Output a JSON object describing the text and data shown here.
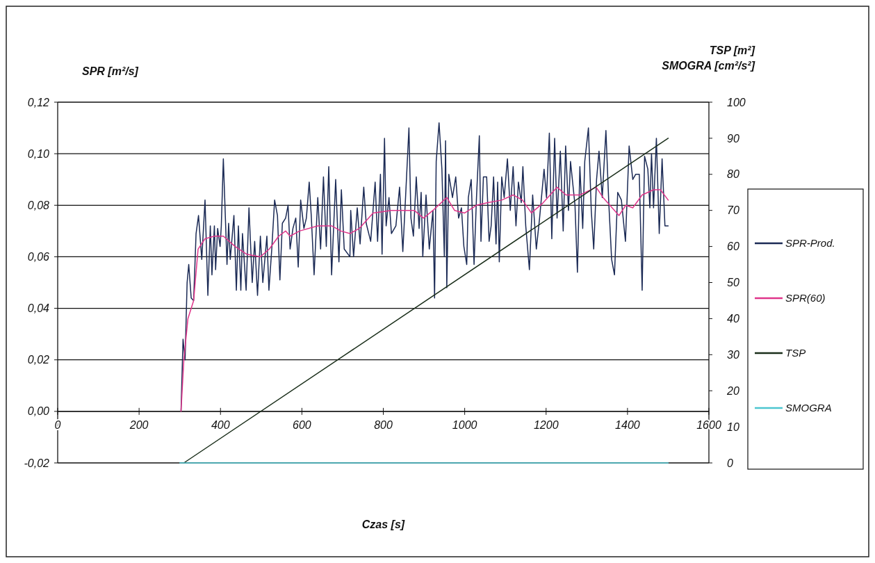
{
  "chart_data": {
    "type": "line",
    "xlabel": "Czas [s]",
    "ylabel": "SPR [m²/s]",
    "y2label": "TSP [m²]\nSMOGRA [cm²/s²]",
    "xlim": [
      0,
      1600
    ],
    "xticks": [
      0,
      200,
      400,
      600,
      800,
      1000,
      1200,
      1400,
      1600
    ],
    "ylim": [
      -0.02,
      0.12
    ],
    "yticks": [
      {
        "value": -0.02,
        "label": "-0,02"
      },
      {
        "value": 0,
        "label": "0,00"
      },
      {
        "value": 0.02,
        "label": "0,02"
      },
      {
        "value": 0.04,
        "label": "0,04"
      },
      {
        "value": 0.06,
        "label": "0,06"
      },
      {
        "value": 0.08,
        "label": "0,08"
      },
      {
        "value": 0.1,
        "label": "0,10"
      },
      {
        "value": 0.12,
        "label": "0,12"
      }
    ],
    "y2lim": [
      0,
      100
    ],
    "y2ticks": [
      0,
      10,
      20,
      30,
      40,
      50,
      60,
      70,
      80,
      90,
      100
    ],
    "grid": "y",
    "legend": "right",
    "marker": "none",
    "line_style": "solid",
    "series": [
      {
        "name": "SPR-Prod.",
        "color": "#1b2a55",
        "x": [
          303,
          308,
          313,
          318,
          322,
          328,
          334,
          340,
          346,
          354,
          362,
          369,
          375,
          379,
          385,
          388,
          393,
          399,
          402,
          407,
          416,
          420,
          424,
          433,
          439,
          444,
          450,
          454,
          463,
          470,
          478,
          484,
          491,
          498,
          504,
          514,
          519,
          526,
          533,
          540,
          546,
          552,
          560,
          566,
          571,
          578,
          585,
          591,
          597,
          605,
          611,
          618,
          623,
          630,
          639,
          646,
          653,
          660,
          666,
          673,
          683,
          691,
          697,
          704,
          718,
          720,
          727,
          736,
          743,
          752,
          758,
          769,
          780,
          786,
          793,
          797,
          803,
          807,
          814,
          820,
          831,
          840,
          848,
          855,
          863,
          868,
          874,
          881,
          888,
          893,
          897,
          905,
          913,
          922,
          926,
          930,
          937,
          944,
          950,
          953,
          956,
          961,
          970,
          975,
          978,
          985,
          992,
          998,
          1005,
          1009,
          1016,
          1023,
          1029,
          1036,
          1040,
          1046,
          1054,
          1060,
          1065,
          1071,
          1077,
          1081,
          1085,
          1091,
          1097,
          1105,
          1112,
          1119,
          1126,
          1132,
          1139,
          1143,
          1150,
          1159,
          1167,
          1176,
          1184,
          1195,
          1201,
          1208,
          1214,
          1221,
          1227,
          1235,
          1242,
          1248,
          1255,
          1260,
          1271,
          1277,
          1283,
          1290,
          1295,
          1304,
          1311,
          1317,
          1324,
          1330,
          1338,
          1347,
          1354,
          1361,
          1368,
          1376,
          1385,
          1395,
          1404,
          1413,
          1420,
          1429,
          1436,
          1442,
          1450,
          1455,
          1459,
          1464,
          1471,
          1478,
          1485,
          1492,
          1500
        ],
        "values": [
          0,
          0.028,
          0.02,
          0.05,
          0.057,
          0.044,
          0.043,
          0.069,
          0.076,
          0.059,
          0.082,
          0.045,
          0.072,
          0.053,
          0.072,
          0.055,
          0.071,
          0.064,
          0.072,
          0.098,
          0.057,
          0.073,
          0.059,
          0.076,
          0.047,
          0.072,
          0.047,
          0.069,
          0.047,
          0.079,
          0.05,
          0.066,
          0.045,
          0.068,
          0.05,
          0.068,
          0.047,
          0.063,
          0.082,
          0.076,
          0.051,
          0.073,
          0.075,
          0.08,
          0.063,
          0.071,
          0.075,
          0.056,
          0.082,
          0.071,
          0.075,
          0.089,
          0.076,
          0.053,
          0.083,
          0.063,
          0.091,
          0.064,
          0.095,
          0.053,
          0.09,
          0.058,
          0.086,
          0.063,
          0.06,
          0.078,
          0.06,
          0.079,
          0.065,
          0.087,
          0.073,
          0.066,
          0.089,
          0.066,
          0.092,
          0.061,
          0.106,
          0.072,
          0.083,
          0.069,
          0.072,
          0.087,
          0.062,
          0.084,
          0.11,
          0.075,
          0.068,
          0.091,
          0.071,
          0.085,
          0.06,
          0.084,
          0.063,
          0.078,
          0.044,
          0.097,
          0.112,
          0.094,
          0.06,
          0.105,
          0.048,
          0.092,
          0.083,
          0.088,
          0.091,
          0.075,
          0.079,
          0.064,
          0.057,
          0.083,
          0.09,
          0.057,
          0.083,
          0.107,
          0.066,
          0.091,
          0.091,
          0.066,
          0.072,
          0.091,
          0.065,
          0.089,
          0.058,
          0.091,
          0.083,
          0.098,
          0.078,
          0.095,
          0.072,
          0.089,
          0.081,
          0.095,
          0.072,
          0.055,
          0.084,
          0.063,
          0.075,
          0.094,
          0.083,
          0.108,
          0.067,
          0.106,
          0.075,
          0.101,
          0.07,
          0.103,
          0.078,
          0.097,
          0.08,
          0.054,
          0.095,
          0.071,
          0.097,
          0.11,
          0.078,
          0.063,
          0.09,
          0.101,
          0.083,
          0.109,
          0.081,
          0.059,
          0.053,
          0.085,
          0.082,
          0.066,
          0.103,
          0.09,
          0.092,
          0.092,
          0.047,
          0.099,
          0.094,
          0.079,
          0.1,
          0.079,
          0.106,
          0.069,
          0.098,
          0.072,
          0.072
        ]
      },
      {
        "name": "SPR(60)",
        "color": "#e0358a",
        "x": [
          303,
          310,
          320,
          334,
          345,
          362,
          385,
          407,
          436,
          464,
          498,
          520,
          543,
          560,
          571,
          594,
          639,
          673,
          696,
          718,
          741,
          775,
          820,
          854,
          876,
          899,
          922,
          956,
          975,
          1000,
          1029,
          1057,
          1091,
          1119,
          1142,
          1164,
          1193,
          1227,
          1249,
          1283,
          1323,
          1340,
          1379,
          1396,
          1413,
          1436,
          1464,
          1481,
          1500
        ],
        "values": [
          0,
          0.02,
          0.036,
          0.043,
          0.063,
          0.067,
          0.068,
          0.068,
          0.064,
          0.061,
          0.06,
          0.063,
          0.068,
          0.07,
          0.068,
          0.07,
          0.072,
          0.072,
          0.07,
          0.069,
          0.071,
          0.077,
          0.078,
          0.078,
          0.078,
          0.075,
          0.078,
          0.083,
          0.078,
          0.077,
          0.08,
          0.081,
          0.082,
          0.084,
          0.082,
          0.077,
          0.081,
          0.087,
          0.084,
          0.084,
          0.087,
          0.083,
          0.076,
          0.08,
          0.079,
          0.084,
          0.086,
          0.086,
          0.082
        ]
      },
      {
        "name": "TSP",
        "color": "#1a2e1a",
        "axis": "y2",
        "x": [
          310,
          1500
        ],
        "values": [
          0,
          90
        ]
      },
      {
        "name": "SMOGRA",
        "color": "#4cc5d0",
        "axis": "y2",
        "x": [
          300,
          1500
        ],
        "values": [
          0,
          0
        ]
      }
    ]
  }
}
